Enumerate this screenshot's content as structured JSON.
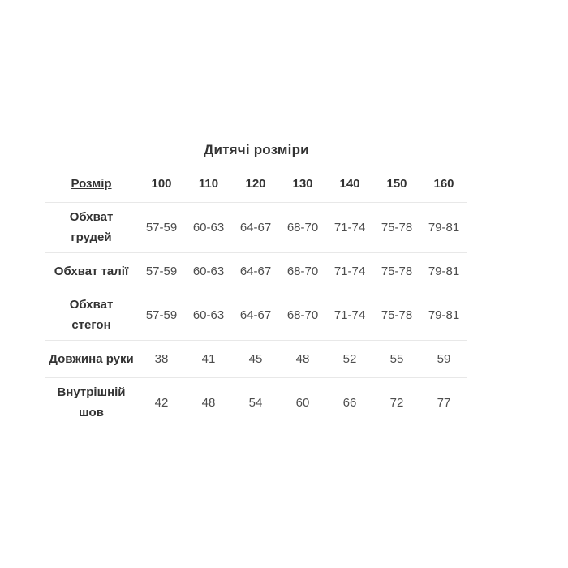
{
  "page": {
    "background": "#ffffff"
  },
  "colors": {
    "text_strong": "#333333",
    "text_values": "#4d4d4d",
    "divider": "#e8e8e8",
    "background": "#ffffff"
  },
  "chart_data": {
    "type": "table",
    "title": "Дитячі розміри",
    "header": {
      "label": "Розмір",
      "sizes": [
        "100",
        "110",
        "120",
        "130",
        "140",
        "150",
        "160"
      ]
    },
    "rows": [
      {
        "label": "Обхват грудей",
        "label_display": "Обхват\nгрудей",
        "values": [
          "57-59",
          "60-63",
          "64-67",
          "68-70",
          "71-74",
          "75-78",
          "79-81"
        ]
      },
      {
        "label": "Обхват талії",
        "label_display": "Обхват талії",
        "values": [
          "57-59",
          "60-63",
          "64-67",
          "68-70",
          "71-74",
          "75-78",
          "79-81"
        ]
      },
      {
        "label": "Обхват стегон",
        "label_display": "Обхват\nстегон",
        "values": [
          "57-59",
          "60-63",
          "64-67",
          "68-70",
          "71-74",
          "75-78",
          "79-81"
        ]
      },
      {
        "label": "Довжина руки",
        "label_display": "Довжина руки",
        "values": [
          "38",
          "41",
          "45",
          "48",
          "52",
          "55",
          "59"
        ]
      },
      {
        "label": "Внутрішній шов",
        "label_display": "Внутрішній\nшов",
        "values": [
          "42",
          "48",
          "54",
          "60",
          "66",
          "72",
          "77"
        ]
      }
    ]
  }
}
